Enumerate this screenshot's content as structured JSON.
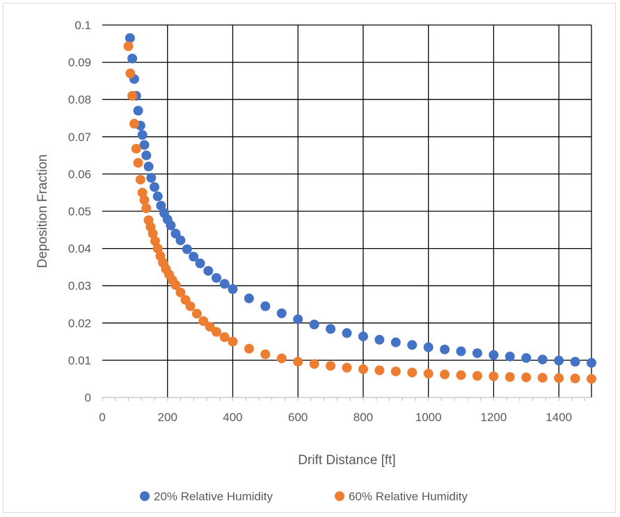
{
  "chart_data": {
    "type": "scatter",
    "xlabel": "Drift Distance [ft]",
    "ylabel": "Deposition Fraction",
    "xlim": [
      0,
      1500
    ],
    "ylim": [
      0,
      0.1
    ],
    "xticks": [
      0,
      200,
      400,
      600,
      800,
      1000,
      1200,
      1400
    ],
    "yticks": [
      0,
      0.01,
      0.02,
      0.03,
      0.04,
      0.05,
      0.06,
      0.07,
      0.08,
      0.09,
      0.1
    ],
    "grid": true,
    "legend_position": "bottom",
    "series": [
      {
        "name": "20% Relative Humidity",
        "color": "#4472C4",
        "x": [
          85,
          92,
          98,
          104,
          110,
          117,
          123,
          129,
          135,
          142,
          150,
          160,
          170,
          180,
          190,
          200,
          210,
          225,
          240,
          260,
          280,
          300,
          325,
          350,
          375,
          400,
          450,
          500,
          550,
          600,
          650,
          700,
          750,
          800,
          850,
          900,
          950,
          1000,
          1050,
          1100,
          1150,
          1200,
          1250,
          1300,
          1350,
          1400,
          1450,
          1500
        ],
        "y": [
          0.0965,
          0.091,
          0.0855,
          0.081,
          0.077,
          0.073,
          0.0705,
          0.0678,
          0.065,
          0.062,
          0.059,
          0.0565,
          0.054,
          0.0515,
          0.0495,
          0.0478,
          0.0462,
          0.044,
          0.0422,
          0.0398,
          0.0378,
          0.036,
          0.034,
          0.0321,
          0.0305,
          0.0291,
          0.0266,
          0.0245,
          0.0226,
          0.021,
          0.0196,
          0.0184,
          0.0173,
          0.0164,
          0.0155,
          0.0148,
          0.0141,
          0.0135,
          0.0129,
          0.0124,
          0.0119,
          0.0114,
          0.011,
          0.0106,
          0.0102,
          0.0099,
          0.0096,
          0.0093
        ]
      },
      {
        "name": "60% Relative Humidity",
        "color": "#ED7D31",
        "x": [
          80,
          86,
          92,
          98,
          104,
          110,
          117,
          123,
          129,
          135,
          142,
          148,
          155,
          162,
          170,
          178,
          186,
          195,
          205,
          215,
          225,
          240,
          255,
          270,
          290,
          310,
          330,
          350,
          375,
          400,
          450,
          500,
          550,
          600,
          650,
          700,
          750,
          800,
          850,
          900,
          950,
          1000,
          1050,
          1100,
          1150,
          1200,
          1250,
          1300,
          1350,
          1400,
          1450,
          1500
        ],
        "y": [
          0.0943,
          0.087,
          0.081,
          0.0735,
          0.0668,
          0.063,
          0.0585,
          0.055,
          0.053,
          0.0508,
          0.0476,
          0.0458,
          0.044,
          0.042,
          0.04,
          0.038,
          0.0362,
          0.0345,
          0.033,
          0.0315,
          0.0302,
          0.0282,
          0.0262,
          0.0245,
          0.0225,
          0.0205,
          0.019,
          0.0176,
          0.0162,
          0.015,
          0.0131,
          0.0116,
          0.0105,
          0.0096,
          0.009,
          0.0085,
          0.008,
          0.0076,
          0.0073,
          0.007,
          0.0067,
          0.0064,
          0.0062,
          0.006,
          0.0058,
          0.0057,
          0.0055,
          0.0054,
          0.0053,
          0.0052,
          0.0051,
          0.005
        ]
      }
    ]
  }
}
